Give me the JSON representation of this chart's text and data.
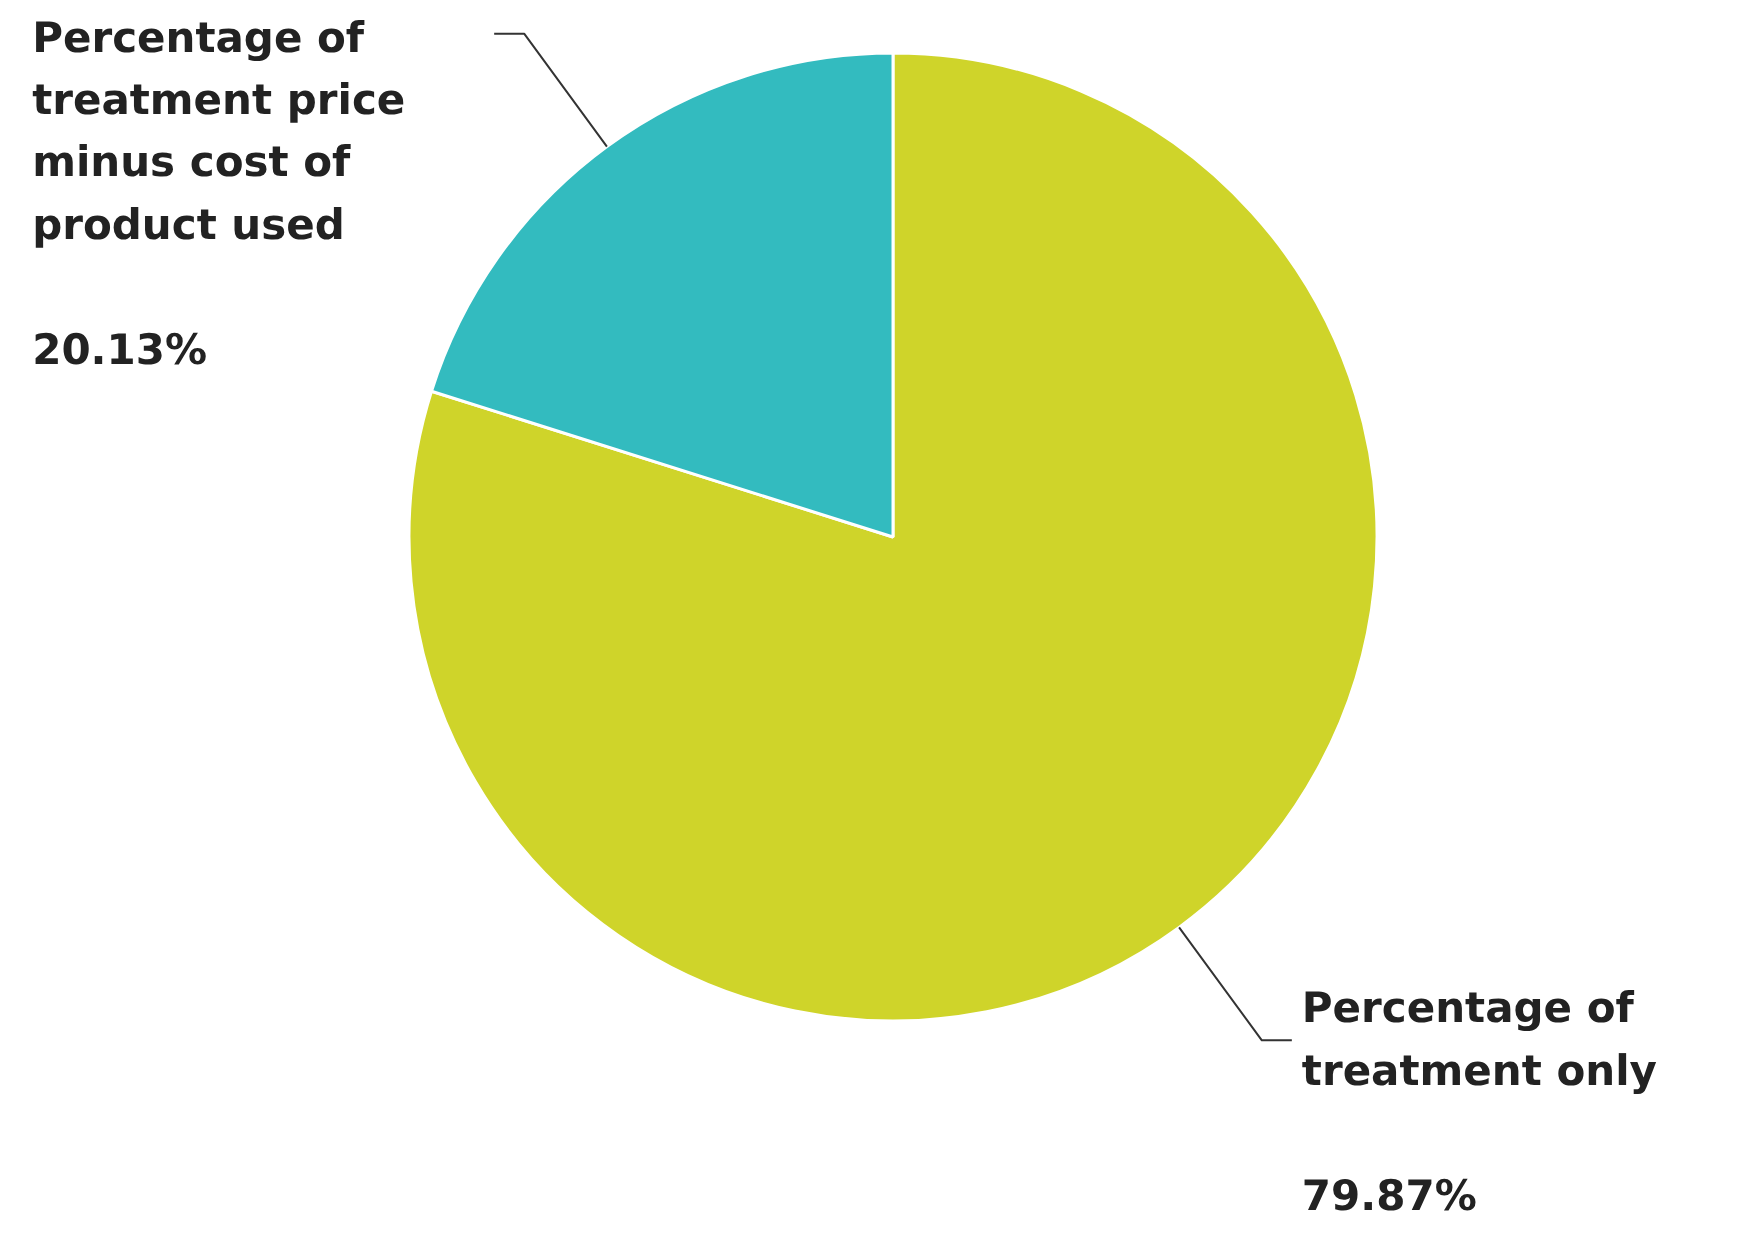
{
  "chart_data": {
    "type": "pie",
    "categories": [
      "Percentage of treatment only",
      "Percentage of treatment price minus cost of product used"
    ],
    "values": [
      79.87,
      20.13
    ],
    "colors": [
      "#cfd42a",
      "#33bbbf"
    ],
    "value_labels": [
      "79.87%",
      "20.13%"
    ]
  }
}
